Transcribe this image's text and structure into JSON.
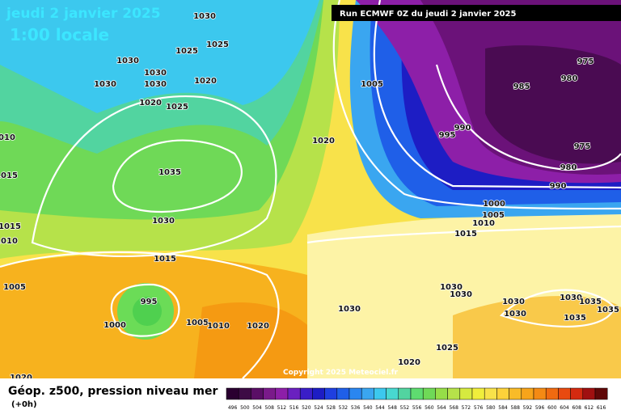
{
  "header": {
    "date": "jeudi 2 janvier 2025",
    "time": "1:00 locale",
    "run": "Run ECMWF 0Z du jeudi 2 janvier 2025"
  },
  "copyright": "Copyright 2025 Meteociel.fr",
  "footer": {
    "title": "Géop. z500, pression niveau mer",
    "lead": "(+0h)"
  },
  "isobar_labels": [
    "1030",
    "1025",
    "1025",
    "1030",
    "1030",
    "1030",
    "1030",
    "1020",
    "1020",
    "1025",
    "1010",
    "1035",
    "1015",
    "1030",
    "1015",
    "1010",
    "1015",
    "1005",
    "995",
    "1000",
    "1005",
    "1010",
    "1020",
    "1030",
    "1030",
    "1030",
    "1030",
    "1030",
    "1030",
    "1035",
    "1035",
    "1035",
    "1025",
    "1020",
    "1020",
    "1005",
    "1020",
    "995",
    "990",
    "985",
    "980",
    "975",
    "975",
    "980",
    "990",
    "1000",
    "1005",
    "1010",
    "1015"
  ],
  "colorbar": {
    "labels": [
      496,
      500,
      504,
      508,
      512,
      516,
      520,
      524,
      528,
      532,
      536,
      540,
      544,
      548,
      552,
      556,
      560,
      564,
      568,
      572,
      576,
      580,
      584,
      588,
      592,
      596,
      600,
      604,
      608,
      612,
      616
    ]
  }
}
